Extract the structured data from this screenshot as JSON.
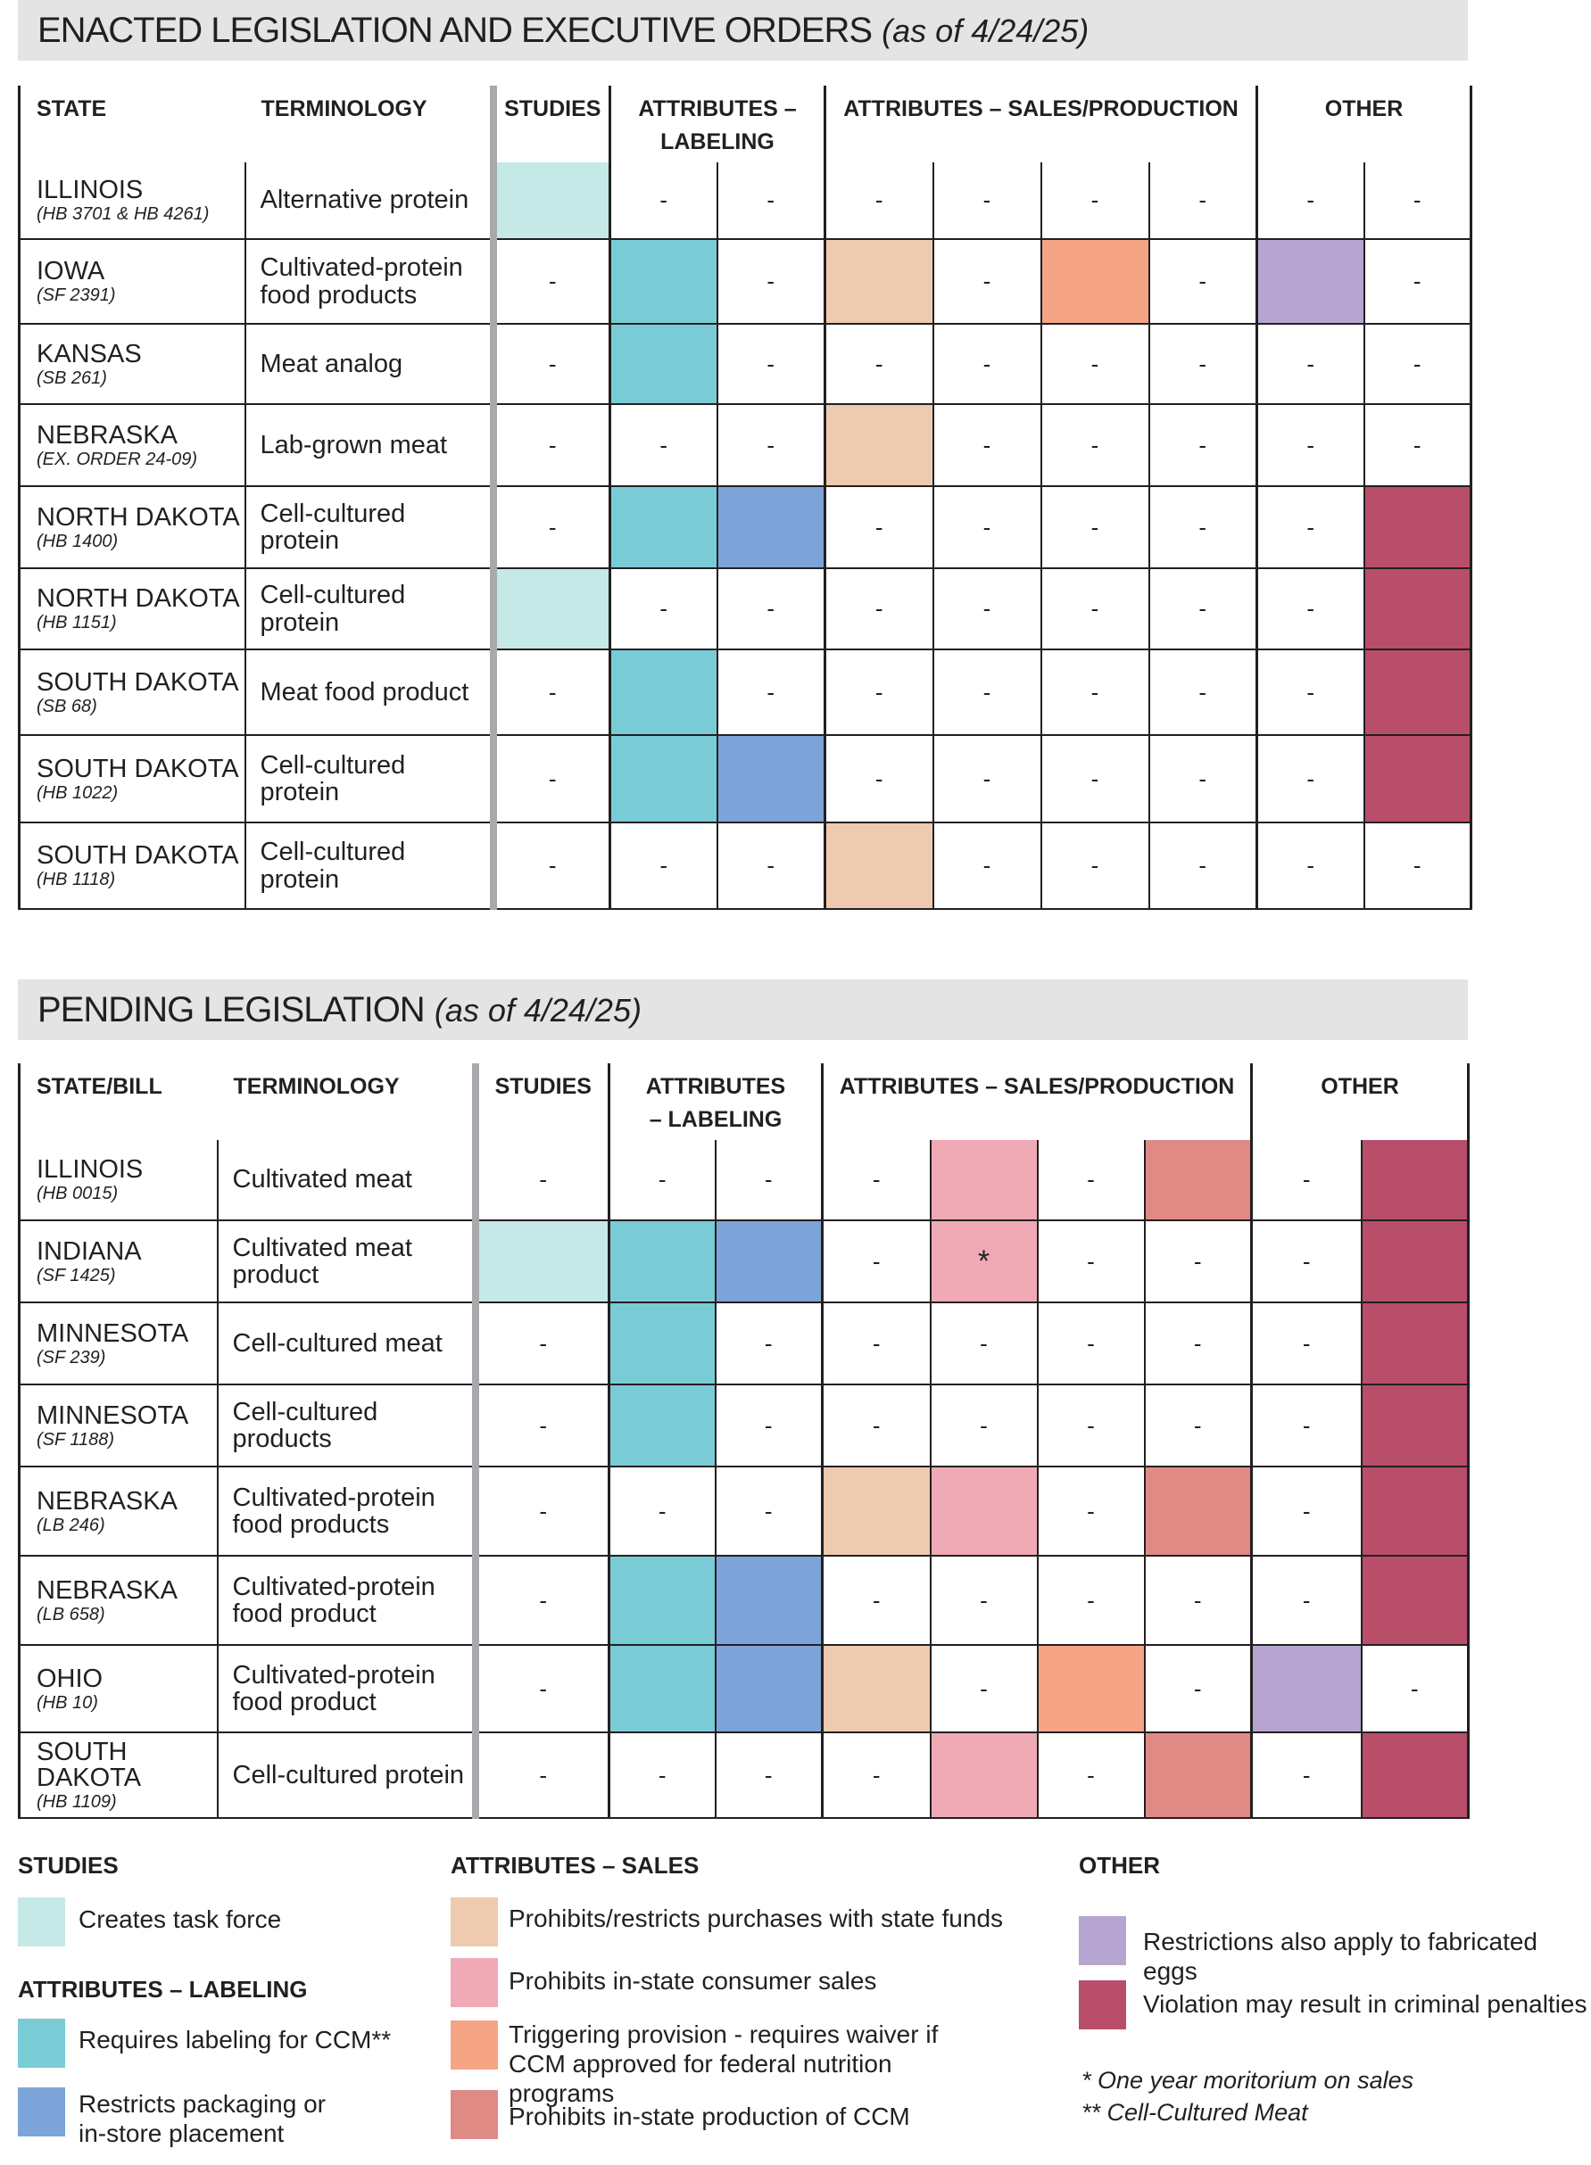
{
  "enacted": {
    "title": "ENACTED LEGISLATION AND EXECUTIVE ORDERS",
    "as_of": "(as of 4/24/25)",
    "headers": {
      "state": "STATE",
      "terminology": "TERMINOLOGY",
      "studies": "STUDIES",
      "labeling": "ATTRIBUTES – LABELING",
      "sales": "ATTRIBUTES – SALES/PRODUCTION",
      "other": "OTHER"
    },
    "rows": [
      {
        "state": "ILLINOIS",
        "bill": "(HB 3701 & HB 4261)",
        "term": "Alternative protein",
        "cells": [
          "task",
          "-",
          "-",
          "-",
          "-",
          "-",
          "-",
          "-",
          "-"
        ]
      },
      {
        "state": "IOWA",
        "bill": "(SF 2391)",
        "term": "Cultivated-protein food products",
        "cells": [
          "-",
          "label",
          "-",
          "funds",
          "-",
          "trigger",
          "-",
          "eggs",
          "-"
        ]
      },
      {
        "state": "KANSAS",
        "bill": "(SB 261)",
        "term": "Meat analog",
        "cells": [
          "-",
          "label",
          "-",
          "-",
          "-",
          "-",
          "-",
          "-",
          "-"
        ]
      },
      {
        "state": "NEBRASKA",
        "bill": "(EX. ORDER 24-09)",
        "term": "Lab-grown meat",
        "cells": [
          "-",
          "-",
          "-",
          "funds",
          "-",
          "-",
          "-",
          "-",
          "-"
        ]
      },
      {
        "state": "NORTH DAKOTA",
        "bill": "(HB 1400)",
        "term": "Cell-cultured protein",
        "cells": [
          "-",
          "label",
          "pack",
          "-",
          "-",
          "-",
          "-",
          "-",
          "crim"
        ]
      },
      {
        "state": "NORTH DAKOTA",
        "bill": "(HB 1151)",
        "term": "Cell-cultured protein",
        "cells": [
          "task",
          "-",
          "-",
          "-",
          "-",
          "-",
          "-",
          "-",
          "crim"
        ]
      },
      {
        "state": "SOUTH DAKOTA",
        "bill": "(SB 68)",
        "term": "Meat food product",
        "cells": [
          "-",
          "label",
          "-",
          "-",
          "-",
          "-",
          "-",
          "-",
          "crim"
        ]
      },
      {
        "state": "SOUTH DAKOTA",
        "bill": "(HB 1022)",
        "term": "Cell-cultured protein",
        "cells": [
          "-",
          "label",
          "pack",
          "-",
          "-",
          "-",
          "-",
          "-",
          "crim"
        ]
      },
      {
        "state": "SOUTH DAKOTA",
        "bill": "(HB 1118)",
        "term": "Cell-cultured protein",
        "cells": [
          "-",
          "-",
          "-",
          "funds",
          "-",
          "-",
          "-",
          "-",
          "-"
        ]
      }
    ]
  },
  "pending": {
    "title": "PENDING LEGISLATION",
    "as_of": "(as of 4/24/25)",
    "headers": {
      "state": "STATE/BILL",
      "terminology": "TERMINOLOGY",
      "studies": "STUDIES",
      "labeling": "ATTRIBUTES – LABELING",
      "sales": "ATTRIBUTES – SALES/PRODUCTION",
      "other": "OTHER"
    },
    "rows": [
      {
        "state": "ILLINOIS",
        "bill": "(HB 0015)",
        "term": "Cultivated meat",
        "cells": [
          "-",
          "-",
          "-",
          "-",
          "sales",
          "-",
          "prod",
          "-",
          "crim"
        ]
      },
      {
        "state": "INDIANA",
        "bill": "(SF 1425)",
        "term": "Cultivated meat product",
        "cells": [
          "task",
          "label",
          "pack",
          "-",
          "sales*",
          "-",
          "-",
          "-",
          "crim"
        ]
      },
      {
        "state": "MINNESOTA",
        "bill": "(SF 239)",
        "term": "Cell-cultured meat",
        "cells": [
          "-",
          "label",
          "-",
          "-",
          "-",
          "-",
          "-",
          "-",
          "crim"
        ]
      },
      {
        "state": "MINNESOTA",
        "bill": "(SF 1188)",
        "term": "Cell-cultured products",
        "cells": [
          "-",
          "label",
          "-",
          "-",
          "-",
          "-",
          "-",
          "-",
          "crim"
        ]
      },
      {
        "state": "NEBRASKA",
        "bill": "(LB 246)",
        "term": "Cultivated-protein food products",
        "cells": [
          "-",
          "-",
          "-",
          "funds",
          "sales",
          "-",
          "prod",
          "-",
          "crim"
        ]
      },
      {
        "state": "NEBRASKA",
        "bill": "(LB 658)",
        "term": "Cultivated-protein food product",
        "cells": [
          "-",
          "label",
          "pack",
          "-",
          "-",
          "-",
          "-",
          "-",
          "crim"
        ]
      },
      {
        "state": "OHIO",
        "bill": "(HB 10)",
        "term": "Cultivated-protein food product",
        "cells": [
          "-",
          "label",
          "pack",
          "funds",
          "-",
          "trigger",
          "-",
          "eggs",
          "-"
        ]
      },
      {
        "state": "SOUTH DAKOTA",
        "bill": "(HB 1109)",
        "term": "Cell-cultured protein",
        "cells": [
          "-",
          "-",
          "-",
          "-",
          "sales",
          "-",
          "prod",
          "-",
          "crim"
        ]
      }
    ]
  },
  "colors": {
    "task": "#c5e9e7",
    "label": "#79ccd6",
    "pack": "#7da4d8",
    "funds": "#edcab0",
    "sales": "#efaab5",
    "trigger": "#f6a486",
    "prod": "#e08a86",
    "eggs": "#b6a5d0",
    "crim": "#b94e6b"
  },
  "legend": {
    "studies_head": "STUDIES",
    "task": "Creates task force",
    "labeling_head": "ATTRIBUTES – LABELING",
    "label": "Requires labeling for CCM**",
    "pack": "Restricts packaging or in-store placement",
    "sales_head": "ATTRIBUTES – SALES",
    "funds": "Prohibits/restricts purchases with state funds",
    "sales": "Prohibits in-state consumer sales",
    "trigger": "Triggering provision - requires waiver if CCM approved for federal nutrition programs",
    "prod": "Prohibits in-state production of CCM",
    "other_head": "OTHER",
    "eggs": "Restrictions also apply to fabricated eggs",
    "crim": "Violation may result in criminal penalties",
    "note1": "* One year moritorium on sales",
    "note2": "** Cell-Cultured Meat"
  }
}
